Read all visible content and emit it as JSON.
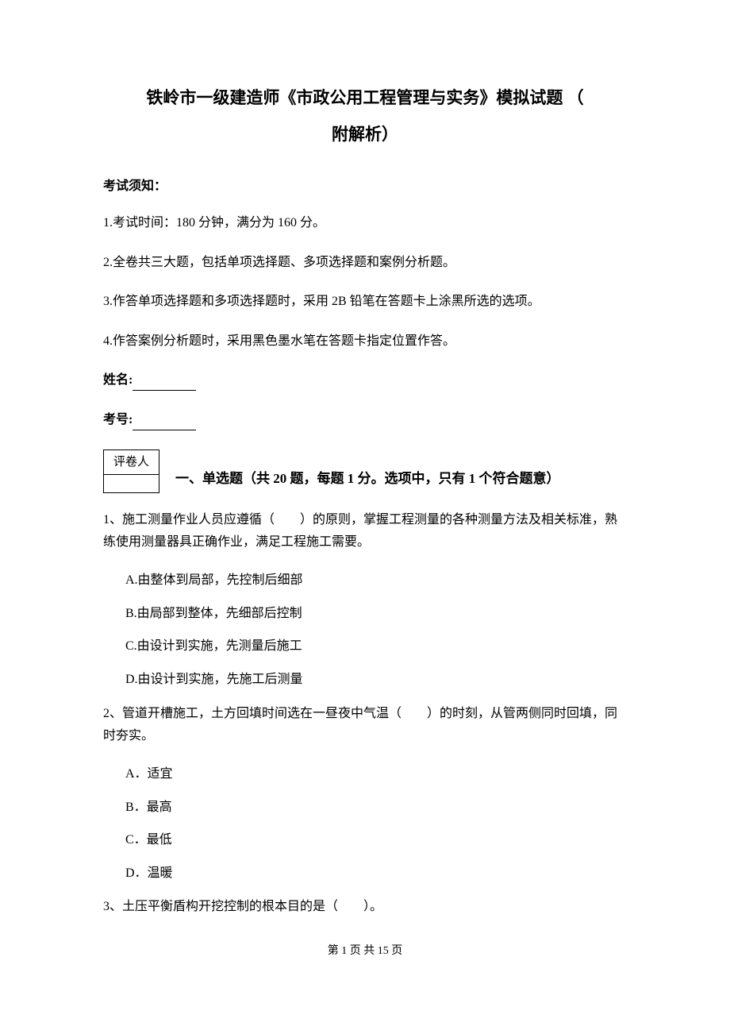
{
  "title_line1": "铁岭市一级建造师《市政公用工程管理与实务》模拟试题 （",
  "title_line2": "附解析）",
  "notice_heading": "考试须知：",
  "instructions": [
    "1.考试时间：180 分钟，满分为 160 分。",
    "2.全卷共三大题，包括单项选择题、多项选择题和案例分析题。",
    "3.作答单项选择题和多项选择题时，采用 2B 铅笔在答题卡上涂黑所选的选项。",
    "4.作答案例分析题时，采用黑色墨水笔在答题卡指定位置作答。"
  ],
  "name_label": "姓名:",
  "id_label": "考号:",
  "scorer_label": "评卷人",
  "section1_title": "一、单选题（共 20 题，每题 1 分。选项中，只有 1 个符合题意）",
  "q1": {
    "text": "1、施工测量作业人员应遵循（　　）的原则，掌握工程测量的各种测量方法及相关标准，熟练使用测量器具正确作业，满足工程施工需要。",
    "options": [
      "A.由整体到局部，先控制后细部",
      "B.由局部到整体，先细部后控制",
      "C.由设计到实施，先测量后施工",
      "D.由设计到实施，先施工后测量"
    ]
  },
  "q2": {
    "text": "2、管道开槽施工，土方回填时间选在一昼夜中气温（　　）的时刻，从管两侧同时回填，同时夯实。",
    "options": [
      "A．适宜",
      "B．最高",
      "C．最低",
      "D．温暖"
    ]
  },
  "q3": {
    "text": "3、土压平衡盾构开挖控制的根本目的是（　　）。"
  },
  "footer": "第 1 页 共 15 页"
}
